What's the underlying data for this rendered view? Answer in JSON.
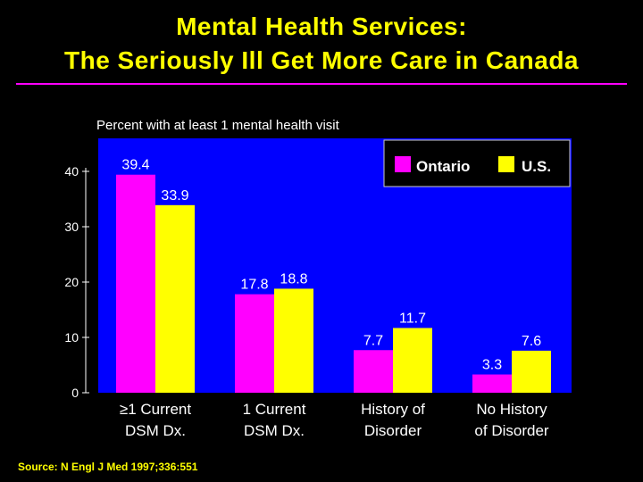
{
  "header": {
    "title_line1": "Mental Health Services:",
    "title_line2": "The Seriously Ill Get More Care in Canada"
  },
  "footer": {
    "source": "Source: N Engl J Med 1997;336:551"
  },
  "colors": {
    "background": "#000000",
    "title": "#ffff00",
    "rule": "#ff00ff",
    "plot_bg": "#0000ff",
    "ontario": "#ff00ff",
    "us": "#ffff00",
    "text": "#ffffff"
  },
  "chart_data": {
    "type": "bar",
    "title": "Percent with at least 1 mental health visit",
    "xlabel": "",
    "ylabel": "",
    "ylim": [
      0,
      40
    ],
    "yticks": [
      0,
      10,
      20,
      30,
      40
    ],
    "categories": [
      [
        "≥1 Current",
        "DSM Dx."
      ],
      [
        "1 Current",
        "DSM Dx."
      ],
      [
        "History of",
        "Disorder"
      ],
      [
        "No History",
        "of Disorder"
      ]
    ],
    "series": [
      {
        "name": "Ontario",
        "color": "#ff00ff",
        "values": [
          39.4,
          17.8,
          7.7,
          3.3
        ]
      },
      {
        "name": "U.S.",
        "color": "#ffff00",
        "values": [
          33.9,
          18.8,
          11.7,
          7.6
        ]
      }
    ],
    "legend": "top-right"
  }
}
